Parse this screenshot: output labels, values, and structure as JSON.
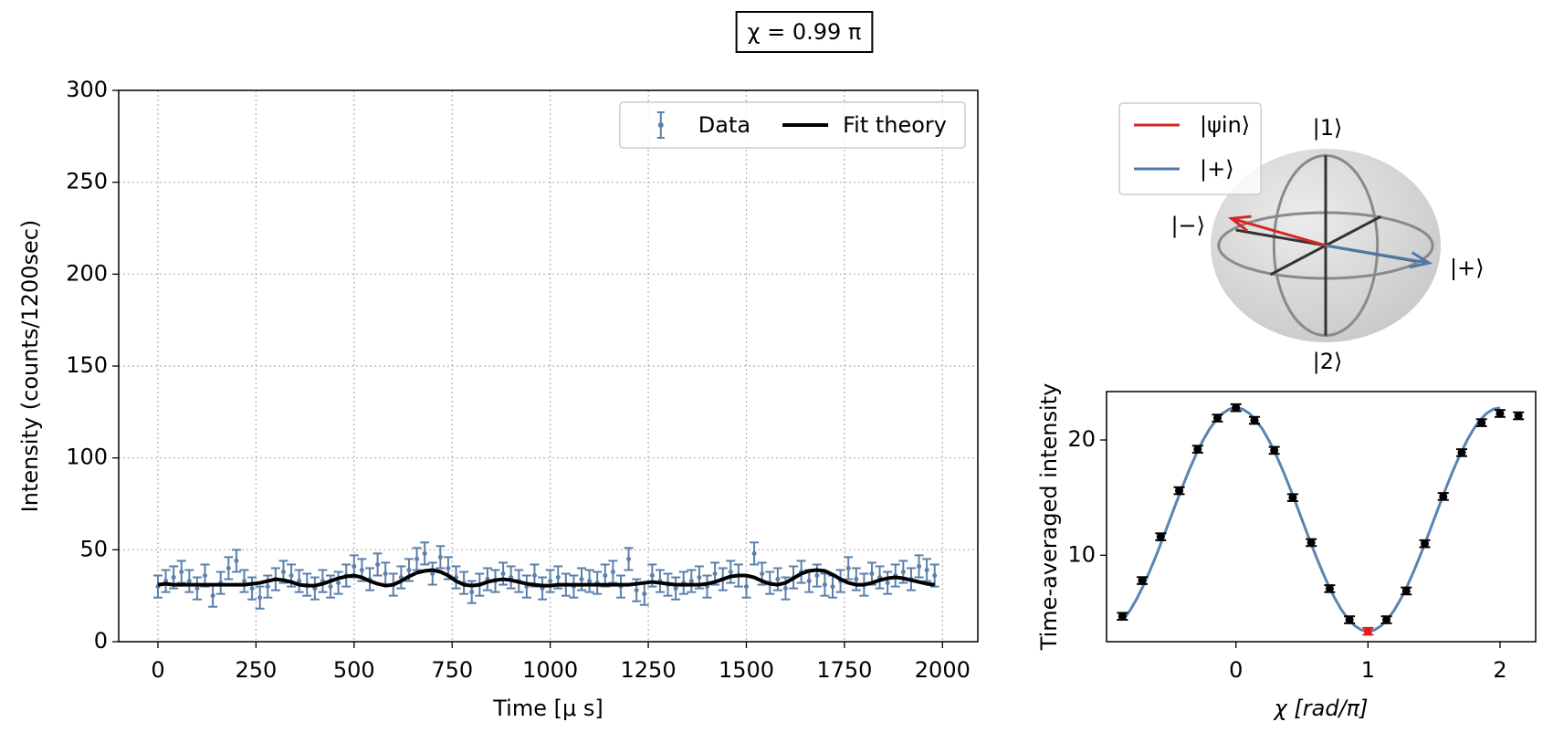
{
  "title": "χ = 0.99 π",
  "chart_data": [
    {
      "type": "errorbar",
      "xlabel": "Time [μ s]",
      "ylabel": "Intensity (counts/1200sec)",
      "xlim": [
        -100,
        2090
      ],
      "ylim": [
        0,
        300
      ],
      "xticks": [
        0,
        250,
        500,
        750,
        1000,
        1250,
        1500,
        1750,
        2000
      ],
      "yticks": [
        0,
        50,
        100,
        150,
        200,
        250,
        300
      ],
      "grid": true,
      "legend": "upper right",
      "x": [
        0,
        20,
        40,
        60,
        80,
        100,
        120,
        140,
        160,
        180,
        200,
        220,
        240,
        260,
        280,
        300,
        320,
        340,
        360,
        380,
        400,
        420,
        440,
        460,
        480,
        500,
        520,
        540,
        560,
        580,
        600,
        620,
        640,
        660,
        680,
        700,
        720,
        740,
        760,
        780,
        800,
        820,
        840,
        860,
        880,
        900,
        920,
        940,
        960,
        980,
        1000,
        1020,
        1040,
        1060,
        1080,
        1100,
        1120,
        1140,
        1160,
        1180,
        1200,
        1220,
        1240,
        1260,
        1280,
        1300,
        1320,
        1340,
        1360,
        1380,
        1400,
        1420,
        1440,
        1460,
        1480,
        1500,
        1520,
        1540,
        1560,
        1580,
        1600,
        1620,
        1640,
        1660,
        1680,
        1700,
        1720,
        1740,
        1760,
        1780,
        1800,
        1820,
        1840,
        1860,
        1880,
        1900,
        1920,
        1940,
        1960,
        1980
      ],
      "series": [
        {
          "name": "Data",
          "color": "#5b80aa",
          "error": 6,
          "values": [
            30,
            33,
            35,
            38,
            33,
            29,
            36,
            25,
            32,
            40,
            44,
            33,
            29,
            24,
            30,
            34,
            38,
            36,
            33,
            31,
            29,
            33,
            30,
            32,
            36,
            41,
            39,
            34,
            42,
            37,
            31,
            35,
            39,
            45,
            48,
            37,
            46,
            40,
            35,
            32,
            27,
            31,
            34,
            33,
            37,
            35,
            33,
            30,
            36,
            29,
            33,
            35,
            31,
            30,
            34,
            33,
            32,
            36,
            38,
            30,
            45,
            28,
            26,
            36,
            33,
            31,
            29,
            32,
            33,
            35,
            30,
            37,
            34,
            38,
            36,
            30,
            48,
            37,
            32,
            34,
            29,
            35,
            38,
            33,
            36,
            31,
            30,
            33,
            40,
            34,
            31,
            37,
            35,
            32,
            36,
            38,
            34,
            41,
            39,
            36
          ]
        },
        {
          "name": "Fit theory",
          "color": "#000000",
          "values": [
            31,
            31.5,
            31,
            31,
            31,
            31,
            31,
            31,
            31,
            31,
            31,
            31,
            31.5,
            32,
            33,
            34,
            33.5,
            32.5,
            31,
            30.5,
            30.5,
            31.5,
            33,
            34.5,
            35.5,
            36,
            35,
            33,
            31.5,
            30.5,
            31,
            33,
            35.5,
            37.5,
            38.5,
            39,
            38,
            36,
            33,
            31,
            30.5,
            31,
            32.5,
            33.5,
            34,
            33.5,
            32.5,
            31.5,
            31,
            30.5,
            30.5,
            31,
            31,
            31,
            31,
            31,
            31,
            31,
            31,
            31,
            31,
            31.5,
            32,
            32.5,
            32,
            31.5,
            31,
            31,
            31,
            31,
            31.5,
            32.5,
            34,
            35.5,
            36,
            36,
            35,
            33,
            31.5,
            31,
            32,
            34.5,
            37,
            38.5,
            39,
            38.5,
            36.5,
            34,
            32,
            31,
            31,
            32,
            33.5,
            34.5,
            35,
            34.5,
            33.5,
            32.5,
            31.5,
            31
          ]
        }
      ]
    },
    {
      "type": "bloch",
      "legend": "upper left",
      "labels": {
        "top": "|1⟩",
        "bottom": "|2⟩",
        "left": "|−⟩",
        "right": "|+⟩"
      },
      "series": [
        {
          "name": "|ψin⟩",
          "color": "#d62728"
        },
        {
          "name": "|+⟩",
          "color": "#4e79a7"
        }
      ]
    },
    {
      "type": "errorbar",
      "xlabel": "χ [rad/π]",
      "ylabel": "Time-averaged intensity",
      "xlim": [
        -0.98,
        2.27
      ],
      "ylim": [
        2.5,
        24.2
      ],
      "xticks": [
        0,
        1,
        2
      ],
      "yticks": [
        10,
        20
      ],
      "grid": false,
      "series": [
        {
          "color": "#5b84b1",
          "x": [
            -0.85,
            -0.8,
            -0.75,
            -0.7,
            -0.65,
            -0.6,
            -0.55,
            -0.5,
            -0.45,
            -0.4,
            -0.35,
            -0.3,
            -0.25,
            -0.2,
            -0.15,
            -0.1,
            -0.05,
            0,
            0.05,
            0.1,
            0.15,
            0.2,
            0.25,
            0.3,
            0.35,
            0.4,
            0.45,
            0.5,
            0.55,
            0.6,
            0.65,
            0.7,
            0.75,
            0.8,
            0.85,
            0.9,
            0.95,
            1,
            1.05,
            1.1,
            1.15,
            1.2,
            1.25,
            1.3,
            1.35,
            1.4,
            1.45,
            1.5,
            1.55,
            1.6,
            1.65,
            1.7,
            1.75,
            1.8,
            1.85,
            1.9,
            1.95,
            2
          ],
          "values": [
            4.46,
            5.25,
            6.24,
            7.4,
            8.7,
            10.1,
            11.58,
            13.1,
            14.62,
            16.1,
            17.5,
            18.8,
            19.96,
            20.95,
            21.74,
            22.32,
            22.68,
            22.8,
            22.68,
            22.32,
            21.74,
            20.95,
            19.96,
            18.8,
            17.5,
            16.1,
            14.62,
            13.1,
            11.58,
            10.1,
            8.7,
            7.4,
            6.24,
            5.25,
            4.46,
            3.88,
            3.52,
            3.4,
            3.52,
            3.88,
            4.46,
            5.25,
            6.24,
            7.4,
            8.7,
            10.1,
            11.58,
            13.1,
            14.62,
            16.1,
            17.5,
            18.8,
            19.96,
            20.95,
            21.74,
            22.32,
            22.68,
            22.8
          ]
        },
        {
          "color": "#000000",
          "error": 0.3,
          "x": [
            -0.86,
            -0.71,
            -0.57,
            -0.43,
            -0.29,
            -0.14,
            0,
            0.14,
            0.29,
            0.43,
            0.57,
            0.71,
            0.86,
            1,
            1.14,
            1.29,
            1.43,
            1.57,
            1.71,
            1.86,
            2,
            2.14
          ],
          "values": [
            4.7,
            7.8,
            11.6,
            15.6,
            19.2,
            21.9,
            22.8,
            21.7,
            19.1,
            15.0,
            11.1,
            7.1,
            4.4,
            3.4,
            4.4,
            6.9,
            11.0,
            15.1,
            18.9,
            21.5,
            22.3,
            22.1
          ],
          "point_colors": [
            "#000000",
            "#000000",
            "#000000",
            "#000000",
            "#000000",
            "#000000",
            "#000000",
            "#000000",
            "#000000",
            "#000000",
            "#000000",
            "#000000",
            "#000000",
            "#e41a1c",
            "#000000",
            "#000000",
            "#000000",
            "#000000",
            "#000000",
            "#000000",
            "#000000",
            "#000000"
          ]
        }
      ]
    }
  ]
}
